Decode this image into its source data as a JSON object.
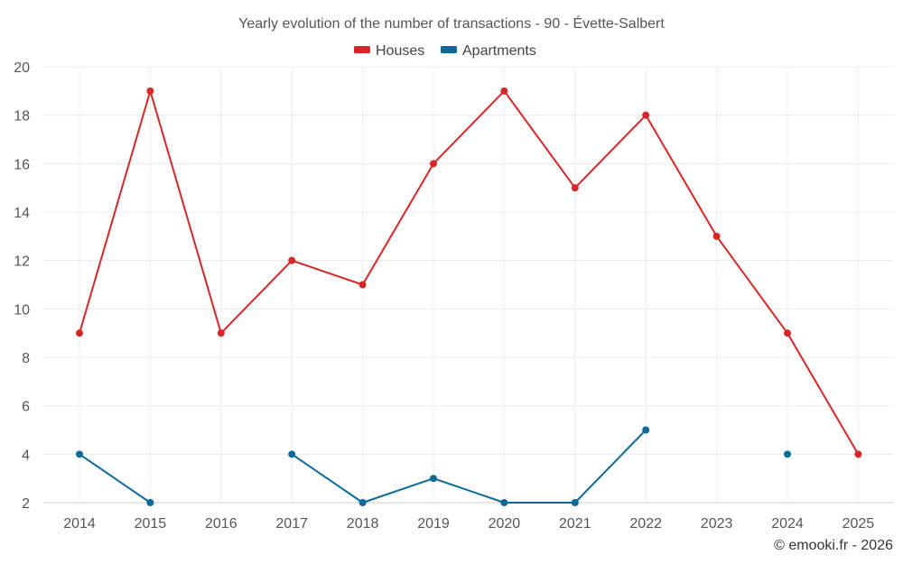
{
  "chart_data": {
    "type": "line",
    "title": "Yearly evolution of the number of transactions - 90 - Évette-Salbert",
    "categories": [
      "2014",
      "2015",
      "2016",
      "2017",
      "2018",
      "2019",
      "2020",
      "2021",
      "2022",
      "2023",
      "2024",
      "2025"
    ],
    "ylim": [
      2,
      20
    ],
    "yticks": [
      2,
      4,
      6,
      8,
      10,
      12,
      14,
      16,
      18,
      20
    ],
    "grid": true,
    "legend_position": "top-center",
    "series": [
      {
        "name": "Houses",
        "color": "#d62728",
        "values": [
          9,
          19,
          9,
          12,
          11,
          16,
          19,
          15,
          18,
          13,
          9,
          4
        ]
      },
      {
        "name": "Apartments",
        "color": "#0b6a9c",
        "values": [
          4,
          2,
          null,
          4,
          2,
          3,
          2,
          2,
          5,
          null,
          4,
          null
        ]
      }
    ]
  },
  "credit": "© emooki.fr - 2026"
}
